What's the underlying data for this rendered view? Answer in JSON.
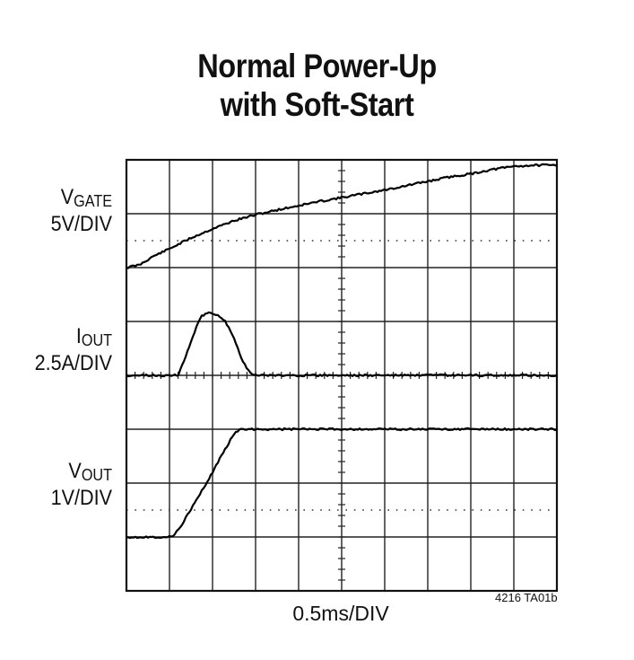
{
  "title": {
    "line1": "Normal Power-Up",
    "line2": "with Soft-Start"
  },
  "labels": [
    {
      "main": "V",
      "sub": "GATE",
      "scale": "5V/DIV"
    },
    {
      "main": "I",
      "sub": "OUT",
      "scale": "2.5A/DIV"
    },
    {
      "main": "V",
      "sub": "OUT",
      "scale": "1V/DIV"
    }
  ],
  "xlabel": "0.5ms/DIV",
  "figure_code": "4216 TA01b",
  "chart_data": {
    "type": "line",
    "title": "Normal Power-Up with Soft-Start",
    "xlabel": "0.5ms/DIV",
    "x_divisions": 10,
    "y_divisions": 8,
    "grid": true,
    "x_unit": "div",
    "series": [
      {
        "name": "VGATE 5V/DIV",
        "x": [
          0,
          0.3,
          0.6,
          1.0,
          1.5,
          2.0,
          2.5,
          3.0,
          3.5,
          4.0,
          4.5,
          5.0,
          5.5,
          6.0,
          6.5,
          7.0,
          7.5,
          8.0,
          8.5,
          9.0,
          9.5,
          10.0
        ],
        "y": [
          6.0,
          6.05,
          6.2,
          6.35,
          6.55,
          6.72,
          6.87,
          6.98,
          7.07,
          7.15,
          7.23,
          7.3,
          7.37,
          7.44,
          7.52,
          7.6,
          7.68,
          7.74,
          7.82,
          7.88,
          7.9,
          7.9
        ]
      },
      {
        "name": "IOUT 2.5A/DIV",
        "x": [
          0,
          1.0,
          1.2,
          1.4,
          1.6,
          1.75,
          1.9,
          2.1,
          2.3,
          2.5,
          2.7,
          2.9,
          3.1,
          10.0
        ],
        "y": [
          4.0,
          4.0,
          4.0,
          4.4,
          4.85,
          5.1,
          5.18,
          5.12,
          5.0,
          4.7,
          4.25,
          4.03,
          4.0,
          4.0
        ]
      },
      {
        "name": "VOUT 1V/DIV",
        "x": [
          0,
          1.0,
          1.1,
          1.3,
          1.6,
          1.9,
          2.2,
          2.5,
          2.6,
          2.7,
          10.0
        ],
        "y": [
          1.0,
          1.0,
          1.03,
          1.25,
          1.65,
          2.05,
          2.5,
          2.92,
          2.97,
          3.0,
          3.0
        ]
      }
    ]
  }
}
